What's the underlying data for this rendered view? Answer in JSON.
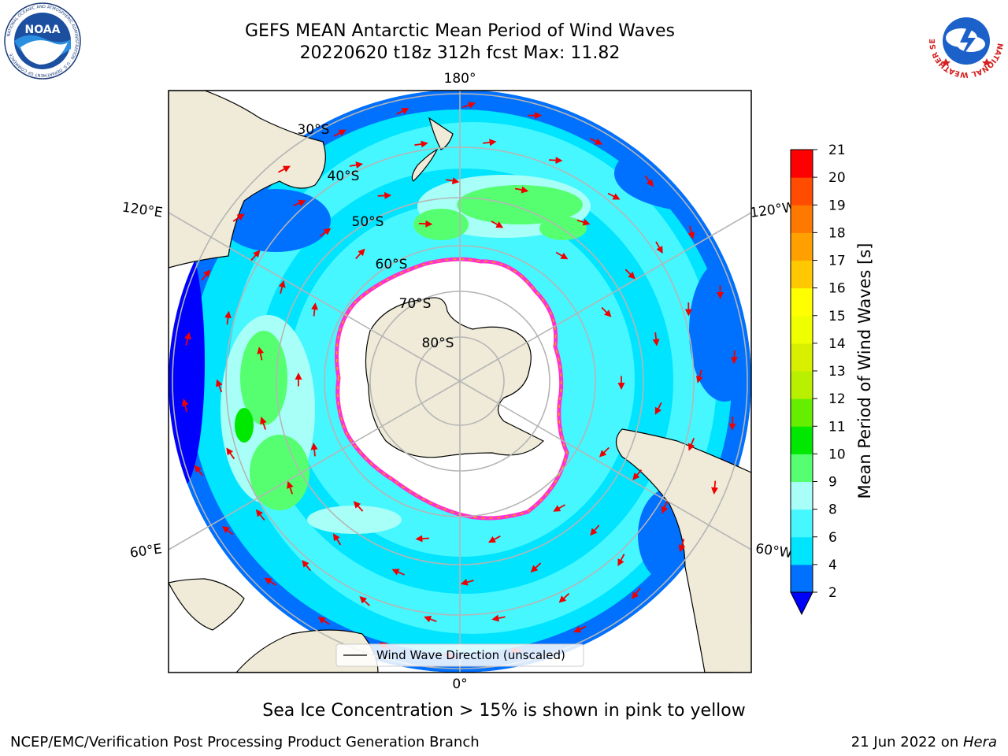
{
  "header": {
    "title_line1": "GEFS MEAN Antarctic Mean Period of Wind Waves",
    "title_line2": "20220620 t18z 312h fcst   Max: 11.82"
  },
  "map": {
    "projection": "south polar stereographic",
    "longitude_labels": [
      "180°",
      "120°E",
      "120°W",
      "60°E",
      "60°W",
      "0°"
    ],
    "latitude_labels": [
      "30°S",
      "40°S",
      "50°S",
      "60°S",
      "70°S",
      "80°S"
    ],
    "legend_label": "Wind Wave Direction (unscaled)",
    "arrow_color": "#ee0000",
    "land_color": "#efebd8",
    "ice_free_interior": "#ffffff"
  },
  "colorbar": {
    "label": "Mean Period of Wind Waves [s]",
    "ticks": [
      "2",
      "4",
      "6",
      "8",
      "9",
      "10",
      "11",
      "12",
      "13",
      "14",
      "15",
      "16",
      "17",
      "18",
      "19",
      "20",
      "21"
    ],
    "colors": [
      "#0070ff",
      "#00e4ff",
      "#46f7ff",
      "#a8fff8",
      "#55ff70",
      "#00e800",
      "#66ee00",
      "#b8f000",
      "#d8f000",
      "#f0ff00",
      "#ffff00",
      "#ffc800",
      "#ffa000",
      "#ff7800",
      "#ff4c00",
      "#ff0000"
    ],
    "underflow_color": "#0000ff"
  },
  "footer": {
    "note": "Sea Ice Concentration > 15% is shown in pink to yellow",
    "credit": "NCEP/EMC/Verification Post Processing Product Generation Branch",
    "date": "21 Jun 2022 on ",
    "machine": "Hera"
  },
  "logos": {
    "noaa_text": "NOAA",
    "nws_text": "NATIONAL WEATHER SERVICE"
  }
}
